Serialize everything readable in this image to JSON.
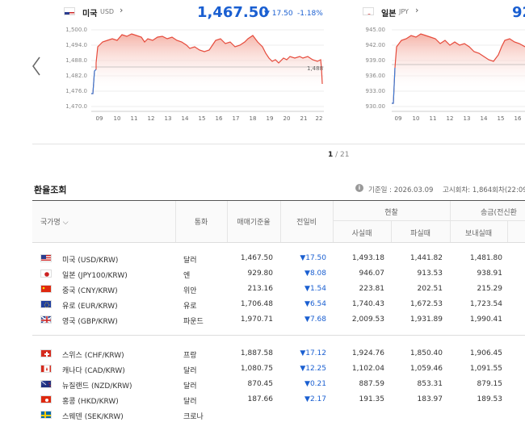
{
  "us_chart": {
    "name": "미국",
    "code": "USD",
    "price": "1,467.50",
    "change": "▼ 17.50",
    "pct": "-1.18%",
    "yticks": [
      "1,500.0",
      "1,494.0",
      "1,488.0",
      "1,482.0",
      "1,476.0",
      "1,470.0"
    ],
    "xticks": [
      "09",
      "10",
      "11",
      "12",
      "13",
      "14",
      "15",
      "16",
      "17",
      "18",
      "19",
      "20",
      "21",
      "22"
    ],
    "last_label": "1,488"
  },
  "jp_chart": {
    "name": "일본",
    "code": "JPY",
    "price": "92",
    "yticks": [
      "945.00",
      "942.00",
      "939.00",
      "936.00",
      "933.00",
      "930.00"
    ],
    "xticks": [
      "09",
      "10",
      "11",
      "12",
      "13",
      "14",
      "15",
      "16"
    ]
  },
  "pager": {
    "current": "1",
    "total": "/ 21"
  },
  "section_title": "환율조회",
  "meta": {
    "date": "기준일 : 2026.03.09",
    "round": "고시회차: 1,864회차(22:09"
  },
  "headers": {
    "country": "국가명",
    "currency": "통화",
    "base": "매매기준율",
    "change": "전일비",
    "cash": "현찰",
    "cash_buy": "사실때",
    "cash_sell": "파실때",
    "remit": "송금(전신환",
    "remit_send": "보내실때"
  },
  "rows": [
    {
      "flag": "us",
      "name": "미국 (USD/KRW)",
      "cur": "달러",
      "base": "1,467.50",
      "chg": "▼17.50",
      "buy": "1,493.18",
      "sell": "1,441.82",
      "send": "1,481.80"
    },
    {
      "flag": "jp",
      "name": "일본 (JPY100/KRW)",
      "cur": "엔",
      "base": "929.80",
      "chg": "▼8.08",
      "buy": "946.07",
      "sell": "913.53",
      "send": "938.91"
    },
    {
      "flag": "cn",
      "name": "중국 (CNY/KRW)",
      "cur": "위안",
      "base": "213.16",
      "chg": "▼1.54",
      "buy": "223.81",
      "sell": "202.51",
      "send": "215.29"
    },
    {
      "flag": "eu",
      "name": "유로 (EUR/KRW)",
      "cur": "유로",
      "base": "1,706.48",
      "chg": "▼6.54",
      "buy": "1,740.43",
      "sell": "1,672.53",
      "send": "1,723.54"
    },
    {
      "flag": "gb",
      "name": "영국 (GBP/KRW)",
      "cur": "파운드",
      "base": "1,970.71",
      "chg": "▼7.68",
      "buy": "2,009.53",
      "sell": "1,931.89",
      "send": "1,990.41"
    },
    {
      "flag": "ch",
      "name": "스위스 (CHF/KRW)",
      "cur": "프랑",
      "base": "1,887.58",
      "chg": "▼17.12",
      "buy": "1,924.76",
      "sell": "1,850.40",
      "send": "1,906.45"
    },
    {
      "flag": "ca",
      "name": "캐나다 (CAD/KRW)",
      "cur": "달러",
      "base": "1,080.75",
      "chg": "▼12.25",
      "buy": "1,102.04",
      "sell": "1,059.46",
      "send": "1,091.55"
    },
    {
      "flag": "nz",
      "name": "뉴질랜드 (NZD/KRW)",
      "cur": "달러",
      "base": "870.45",
      "chg": "▼0.21",
      "buy": "887.59",
      "sell": "853.31",
      "send": "879.15"
    },
    {
      "flag": "hk",
      "name": "홍콩 (HKD/KRW)",
      "cur": "달러",
      "base": "187.66",
      "chg": "▼2.17",
      "buy": "191.35",
      "sell": "183.97",
      "send": "189.53"
    },
    {
      "flag": "se",
      "name": "스웨덴 (SEK/KRW)",
      "cur": "크로나",
      "base": "",
      "chg": "",
      "buy": "",
      "sell": "",
      "send": ""
    }
  ],
  "colors": {
    "price_blue": "#1a5fd1",
    "line_red": "#e64a3b",
    "fill_red": "#f8d3cc"
  }
}
